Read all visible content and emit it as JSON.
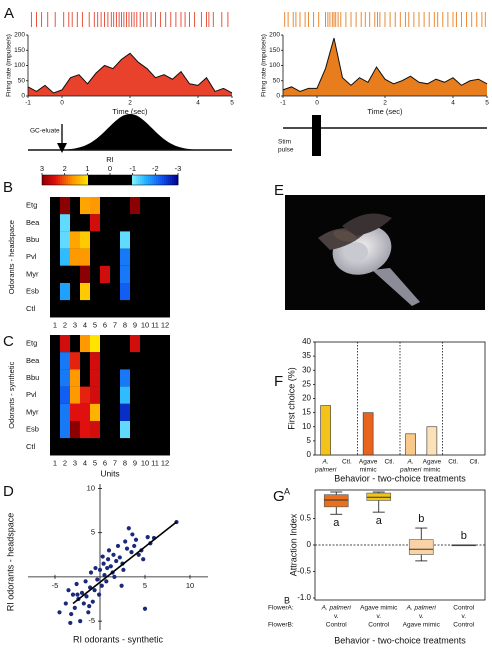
{
  "chart_data": [
    {
      "type": "line",
      "panel": "A",
      "color": "#e8412c",
      "spikes": [
        -0.9,
        -0.75,
        -0.6,
        -0.42,
        -0.2,
        0.05,
        0.2,
        0.3,
        0.45,
        0.6,
        0.8,
        0.95,
        1.05,
        1.15,
        1.25,
        1.35,
        1.45,
        1.52,
        1.6,
        1.68,
        1.75,
        1.82,
        1.9,
        1.97,
        2.05,
        2.12,
        2.2,
        2.3,
        2.4,
        2.5,
        2.62,
        2.75,
        2.9,
        3.05,
        3.2,
        3.35,
        3.5,
        3.62,
        3.75,
        3.9,
        4.1,
        4.25,
        4.32,
        4.45,
        4.7,
        4.88
      ],
      "x": [
        -1,
        -0.75,
        -0.5,
        -0.25,
        0,
        0.25,
        0.5,
        0.75,
        1,
        1.25,
        1.5,
        1.75,
        2,
        2.25,
        2.5,
        2.75,
        3,
        3.25,
        3.5,
        3.75,
        4,
        4.25,
        4.5,
        4.75,
        5
      ],
      "values": [
        30,
        15,
        35,
        10,
        20,
        60,
        70,
        40,
        75,
        100,
        90,
        120,
        140,
        110,
        90,
        60,
        70,
        55,
        80,
        40,
        35,
        60,
        15,
        25,
        10
      ],
      "xlim": [
        -1,
        5
      ],
      "ylim": [
        0,
        200
      ],
      "xticks": [
        -1,
        0,
        2,
        4,
        5
      ],
      "yticks": [
        0,
        50,
        100,
        150,
        200
      ],
      "xlabel": "Time (sec)",
      "ylabel": "Firing rate (impulse/s)",
      "stimulus": [
        "GC-eluate"
      ]
    },
    {
      "type": "line",
      "color": "#e87d1e",
      "spikes": [
        -0.95,
        -0.85,
        -0.7,
        -0.62,
        -0.5,
        -0.35,
        -0.25,
        -0.1,
        0.05,
        0.25,
        0.32,
        0.38,
        0.45,
        0.5,
        0.55,
        0.62,
        0.7,
        0.85,
        1.0,
        1.15,
        1.3,
        1.42,
        1.55,
        1.7,
        1.78,
        1.85,
        2.0,
        2.15,
        2.3,
        2.45,
        2.6,
        2.7,
        2.85,
        3.0,
        3.15,
        3.3,
        3.45,
        3.55,
        3.7,
        3.85,
        4.0,
        4.1,
        4.25,
        4.4,
        4.55,
        4.7,
        4.85,
        4.95
      ],
      "x": [
        -1,
        -0.75,
        -0.5,
        -0.25,
        0,
        0.25,
        0.5,
        0.75,
        1,
        1.25,
        1.5,
        1.75,
        2,
        2.25,
        2.5,
        2.75,
        3,
        3.25,
        3.5,
        3.75,
        4,
        4.25,
        4.5,
        4.75,
        5
      ],
      "values": [
        20,
        30,
        15,
        25,
        25,
        90,
        190,
        60,
        35,
        60,
        45,
        95,
        55,
        40,
        50,
        65,
        45,
        40,
        55,
        45,
        60,
        35,
        50,
        55,
        40
      ],
      "xlim": [
        -1,
        5
      ],
      "ylim": [
        0,
        200
      ],
      "xticks": [
        -1,
        0,
        2,
        4,
        5
      ],
      "yticks": [
        0,
        50,
        100,
        150,
        200
      ],
      "xlabel": "Time (sec)",
      "ylabel": "Firing rate (impulse/s)",
      "stimulus": [
        "Stim",
        "pulse"
      ]
    },
    {
      "type": "heatmap",
      "panel": "B",
      "colorbar_title": "RI",
      "colorbar_lim": [
        3,
        -3
      ],
      "colorbar_ticks": [
        3,
        2,
        1,
        0,
        -1,
        -2,
        -3
      ],
      "rows": [
        "Etg",
        "Bea",
        "Bbu",
        "Pvl",
        "Myr",
        "Esb",
        "Ctl"
      ],
      "columns": [
        1,
        2,
        3,
        4,
        5,
        6,
        7,
        8,
        9,
        10,
        11,
        12
      ],
      "values": [
        [
          0,
          3,
          0,
          1.5,
          1.6,
          0,
          0,
          0,
          3,
          0,
          0,
          0
        ],
        [
          0,
          -1.2,
          0,
          0,
          2.5,
          0,
          0,
          0,
          0,
          0,
          0,
          0
        ],
        [
          0,
          -1.2,
          1.5,
          1.2,
          0,
          0,
          0,
          -1.2,
          0,
          0,
          0,
          0
        ],
        [
          0,
          -1.5,
          1.6,
          1.6,
          0,
          0,
          0,
          -2,
          0,
          0,
          0,
          0
        ],
        [
          0,
          0,
          0,
          3,
          0,
          2.5,
          0,
          -2,
          0,
          0,
          0,
          0
        ],
        [
          0,
          -1.7,
          0,
          1.2,
          0,
          0,
          0,
          -2.2,
          0,
          0,
          0,
          0
        ],
        [
          0,
          0,
          0,
          0,
          0,
          0,
          0,
          0,
          0,
          0,
          0,
          0
        ]
      ],
      "ylabel": "Odorants - headspace"
    },
    {
      "type": "heatmap",
      "panel": "C",
      "rows": [
        "Etg",
        "Bea",
        "Bbu",
        "Pvl",
        "Myr",
        "Esb",
        "Ctl"
      ],
      "columns": [
        1,
        2,
        3,
        4,
        5,
        6,
        7,
        8,
        9,
        10,
        11,
        12
      ],
      "values": [
        [
          0,
          2.5,
          0,
          1.6,
          1.0,
          0,
          0,
          0,
          2.5,
          0,
          0,
          0
        ],
        [
          0,
          -2,
          2.3,
          0,
          2.5,
          0,
          0,
          0,
          0,
          0,
          0,
          0
        ],
        [
          0,
          -2,
          1.6,
          0,
          2.5,
          0,
          0,
          -2,
          0,
          0,
          0,
          0
        ],
        [
          0,
          -2.2,
          1.6,
          2.3,
          2.5,
          0,
          0,
          -1.5,
          0,
          0,
          0,
          0
        ],
        [
          0,
          -2,
          2.4,
          2.4,
          1.4,
          0,
          0,
          -2.6,
          0,
          0,
          0,
          0
        ],
        [
          0,
          -2,
          3,
          2.4,
          2.5,
          0,
          0,
          -1.2,
          0,
          0,
          0,
          0
        ],
        [
          0,
          0,
          0,
          0,
          0,
          0,
          0,
          0,
          0,
          0,
          0,
          0
        ]
      ],
      "xlabel": "Units",
      "ylabel": "Odorants - synthetic"
    },
    {
      "type": "scatter",
      "panel": "D",
      "color": "#1a2a7a",
      "x": [
        -4.5,
        -3.8,
        -3.5,
        -3.2,
        -3,
        -2.8,
        -2.6,
        -2.4,
        -2.2,
        -2,
        -1.8,
        -1.6,
        -1.5,
        -1.3,
        -1.1,
        -1,
        -0.8,
        -0.6,
        -0.5,
        -0.3,
        -0.1,
        0,
        0.2,
        0.4,
        0.5,
        0.7,
        0.9,
        1,
        1.2,
        1.4,
        1.5,
        1.8,
        2,
        2.2,
        2.5,
        2.8,
        3,
        3.2,
        3.5,
        3.8,
        4,
        4.3,
        4.6,
        5,
        5.3,
        5.6,
        6,
        -2.5,
        -1.2,
        0.3,
        1.6,
        2.6,
        3.6,
        8.5,
        4.8,
        -3.3,
        0.8,
        2.4
      ],
      "y": [
        -4,
        -3,
        -1.5,
        -4.2,
        -2,
        -3.5,
        -0.8,
        -2.5,
        -5,
        -1.8,
        -3,
        -0.5,
        -2.2,
        -4,
        -1.2,
        0.5,
        -2.8,
        -1.5,
        1,
        -0.3,
        -2,
        0.8,
        -1,
        1.5,
        0.2,
        -0.5,
        2,
        3,
        1.2,
        0.5,
        2.5,
        1.8,
        3.5,
        2.2,
        1.5,
        4,
        3.2,
        5.5,
        2.8,
        3.5,
        4.2,
        2.5,
        3,
        -3.6,
        4.5,
        3.8,
        4.4,
        -2,
        -3.3,
        2.3,
        0,
        0.8,
        4.8,
        6.2,
        2,
        -5.2,
        1,
        -1
      ],
      "fit": {
        "x": [
          -3,
          8.5
        ],
        "y": [
          -3,
          6.2
        ]
      },
      "xlim": [
        -8,
        12
      ],
      "ylim": [
        -6,
        10.5
      ],
      "xticks": [
        -5,
        5,
        10
      ],
      "yticks": [
        -5,
        5,
        10
      ],
      "xlabel": "RI odorants - synthetic",
      "ylabel": "RI odorants - headspace"
    },
    {
      "type": "image",
      "panel": "E"
    },
    {
      "type": "bar",
      "panel": "F",
      "categories": [
        [
          "A.",
          "palmeri"
        ],
        [
          "Ctl."
        ],
        [
          "Agave",
          "mimic"
        ],
        [
          "Ctl."
        ],
        [
          "A.",
          "palmeri"
        ],
        [
          "Agave",
          "mimic"
        ],
        [
          "Ctl."
        ],
        [
          "Ctl."
        ]
      ],
      "italic_categories": [
        0,
        4
      ],
      "values": [
        17.5,
        0,
        15,
        0,
        7.5,
        10,
        0,
        0
      ],
      "colors": [
        "#f3c21b",
        "#cccccc",
        "#e8641e",
        "#cccccc",
        "#f9c98a",
        "#fde1b6",
        "#cccccc",
        "#cccccc"
      ],
      "ylim": [
        0,
        40
      ],
      "yticks": [
        0,
        5,
        10,
        15,
        20,
        25,
        30,
        35,
        40
      ],
      "xlabel": "Behavior - two-choice treatments",
      "ylabel": "First choice (%)"
    },
    {
      "type": "box",
      "panel": "G",
      "row_labels": [
        "FlowerA:",
        "FlowerB:"
      ],
      "categories": [
        [
          "A. palmeri",
          "v.",
          "Control"
        ],
        [
          "Agave mimic",
          "v.",
          "Control"
        ],
        [
          "A. palmeri",
          "v.",
          "Agave mimic"
        ],
        [
          "Control",
          "v.",
          "Control"
        ]
      ],
      "italic_categories": [
        0,
        2
      ],
      "boxes": [
        {
          "low": 0.58,
          "q1": 0.72,
          "median": 0.85,
          "q3": 0.95,
          "high": 1.0
        },
        {
          "low": 0.62,
          "q1": 0.84,
          "median": 0.9,
          "q3": 0.98,
          "high": 1.0
        },
        {
          "low": -0.3,
          "q1": -0.18,
          "median": -0.08,
          "q3": 0.1,
          "high": 0.32
        },
        {
          "low": 0,
          "q1": 0,
          "median": 0,
          "q3": 0,
          "high": 0
        }
      ],
      "colors": [
        "#e8701e",
        "#f0c419",
        "#f9d3a5",
        "#888888"
      ],
      "significance": [
        "a",
        "a",
        "b",
        "b"
      ],
      "ylim": [
        -1,
        1
      ],
      "yticks": [
        0.5,
        0,
        -0.5,
        {
          "value": -1,
          "label": "-1.0"
        }
      ],
      "end_labels": [
        "A",
        "B"
      ],
      "xlabel": "Behavior - two-choice treatments",
      "ylabel": "Attraction Index"
    }
  ]
}
